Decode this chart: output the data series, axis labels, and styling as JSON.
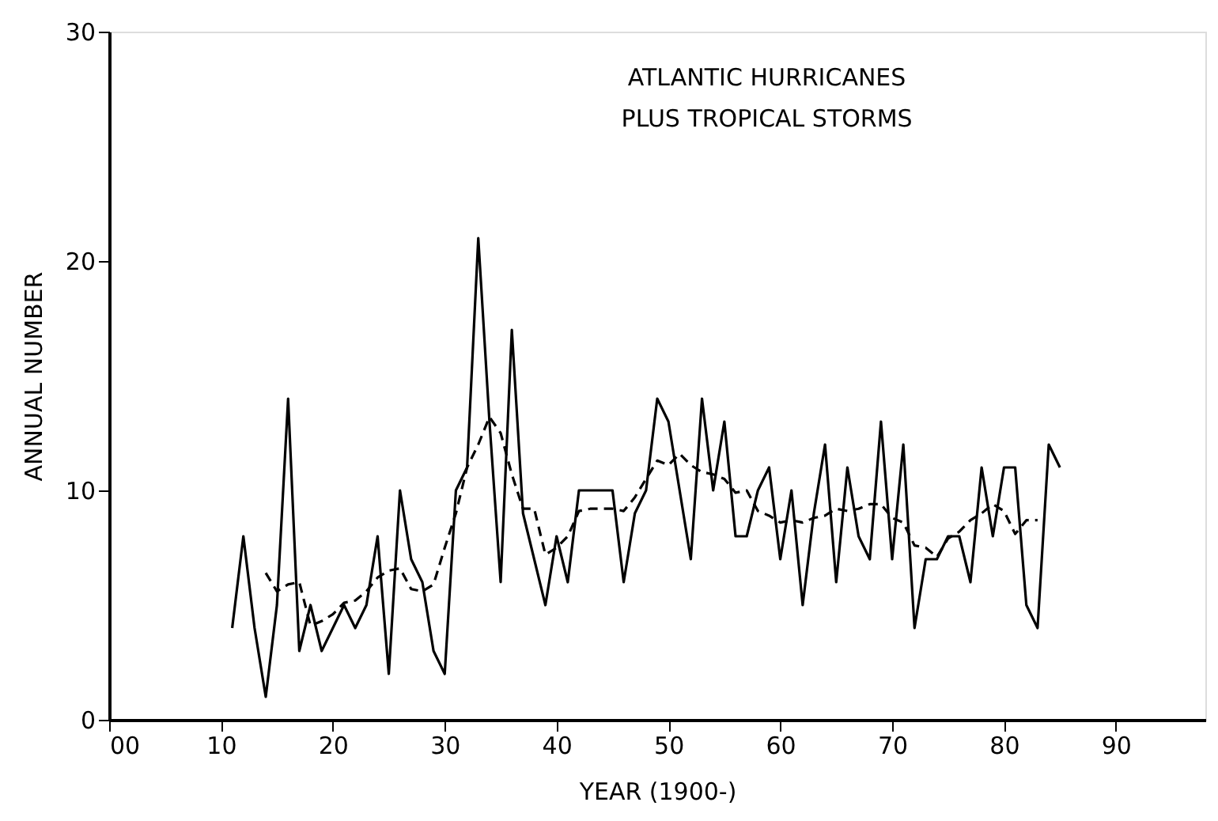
{
  "chart_data": {
    "type": "line",
    "xlabel": "YEAR (1900-)",
    "ylabel": "ANNUAL NUMBER",
    "annotations": [
      "ATLANTIC HURRICANES",
      "PLUS TROPICAL STORMS"
    ],
    "xlim": [
      0,
      98
    ],
    "xticks": [
      {
        "value": 0,
        "label": "00"
      },
      10,
      20,
      30,
      40,
      50,
      60,
      70,
      80,
      90
    ],
    "ylim": [
      0,
      30
    ],
    "yticks": [
      0,
      10,
      20,
      30
    ],
    "grid": false,
    "marker": "none",
    "series": [
      {
        "color": "#000000",
        "line_style": "solid",
        "x": [
          11,
          12,
          13,
          14,
          15,
          16,
          17,
          18,
          19,
          20,
          21,
          22,
          23,
          24,
          25,
          26,
          27,
          28,
          29,
          30,
          31,
          32,
          33,
          34,
          35,
          36,
          37,
          38,
          39,
          40,
          41,
          42,
          43,
          44,
          45,
          46,
          47,
          48,
          49,
          50,
          51,
          52,
          53,
          54,
          55,
          56,
          57,
          58,
          59,
          60,
          61,
          62,
          63,
          64,
          65,
          66,
          67,
          68,
          69,
          70,
          71,
          72,
          73,
          74,
          75,
          76,
          77,
          78,
          79,
          80,
          81,
          82,
          83,
          84,
          85
        ],
        "values": [
          4,
          8,
          4,
          1,
          5,
          14,
          3,
          5,
          3,
          4,
          5,
          4,
          5,
          8,
          2,
          10,
          7,
          6,
          3,
          2,
          10,
          11,
          21,
          13,
          6,
          17,
          9,
          7,
          5,
          8,
          6,
          10,
          10,
          10,
          10,
          6,
          9,
          10,
          14,
          13,
          10,
          7,
          14,
          10,
          13,
          8,
          8,
          10,
          11,
          7,
          10,
          5,
          9,
          12,
          6,
          11,
          8,
          7,
          13,
          7,
          12,
          4,
          7,
          7,
          8,
          8,
          6,
          11,
          8,
          11,
          11,
          5,
          4,
          12,
          11
        ]
      },
      {
        "color": "#000000",
        "line_style": "dashed",
        "x": [
          14,
          15,
          16,
          17,
          18,
          19,
          20,
          21,
          22,
          23,
          24,
          25,
          26,
          27,
          28,
          29,
          30,
          31,
          32,
          33,
          34,
          35,
          36,
          37,
          38,
          39,
          40,
          41,
          42,
          43,
          44,
          45,
          46,
          47,
          48,
          49,
          50,
          51,
          52,
          53,
          54,
          55,
          56,
          57,
          58,
          59,
          60,
          61,
          62,
          63,
          64,
          65,
          66,
          67,
          68,
          69,
          70,
          71,
          72,
          73,
          74,
          75,
          76,
          77,
          78,
          79,
          80,
          81,
          82,
          83
        ],
        "values": [
          6.4,
          5.6,
          5.9,
          6.0,
          4.1,
          4.3,
          4.6,
          5.1,
          5.2,
          5.6,
          6.2,
          6.5,
          6.6,
          5.7,
          5.6,
          5.9,
          7.5,
          9.0,
          11.0,
          12.0,
          13.2,
          12.5,
          10.7,
          9.2,
          9.2,
          7.2,
          7.5,
          8.0,
          9.1,
          9.2,
          9.2,
          9.2,
          9.1,
          9.7,
          10.5,
          11.3,
          11.1,
          11.6,
          11.1,
          10.8,
          10.7,
          10.5,
          9.9,
          10.0,
          9.1,
          8.9,
          8.6,
          8.7,
          8.6,
          8.8,
          8.9,
          9.2,
          9.1,
          9.2,
          9.4,
          9.4,
          8.8,
          8.6,
          7.6,
          7.5,
          7.1,
          7.9,
          8.2,
          8.7,
          9.0,
          9.4,
          9.1,
          8.1,
          8.7,
          8.7
        ]
      }
    ]
  }
}
